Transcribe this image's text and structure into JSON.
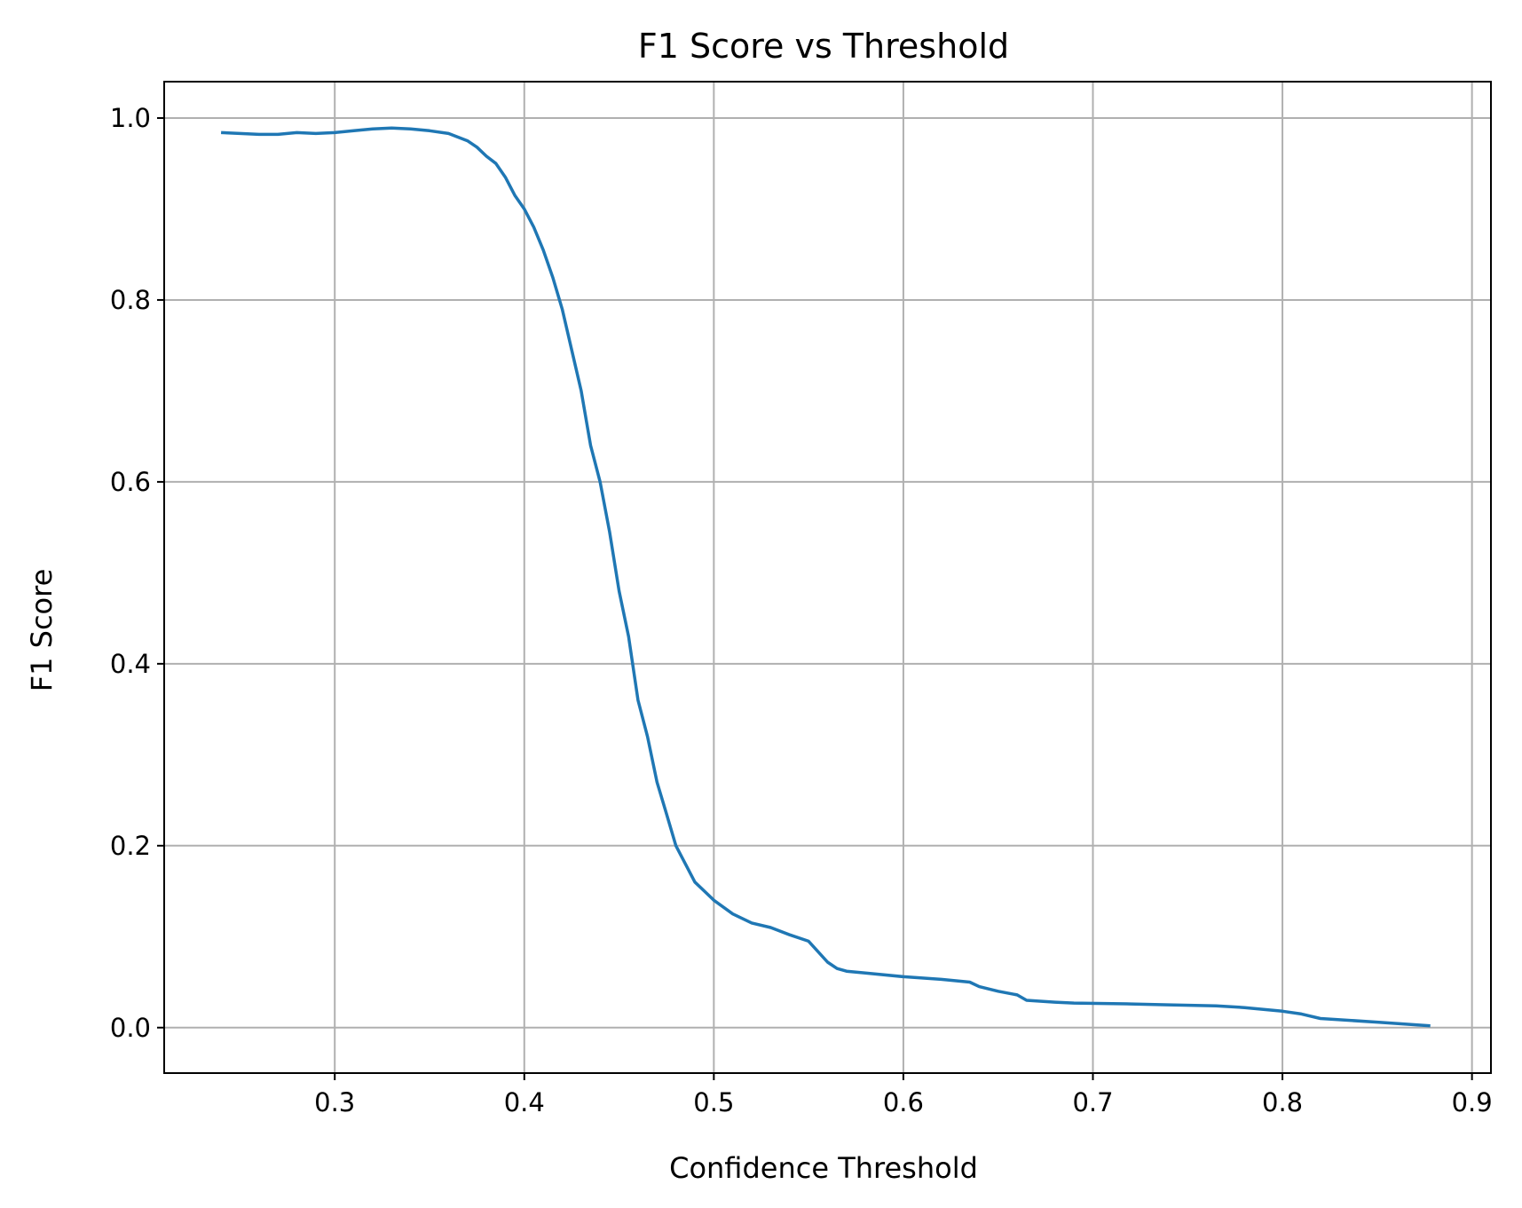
{
  "chart_data": {
    "type": "line",
    "title": "F1 Score vs Threshold",
    "xlabel": "Confidence Threshold",
    "ylabel": "F1 Score",
    "xlim": [
      0.21,
      0.91
    ],
    "ylim": [
      -0.05,
      1.04
    ],
    "xticks": [
      0.3,
      0.4,
      0.5,
      0.6,
      0.7,
      0.8,
      0.9
    ],
    "xtick_labels": [
      "0.3",
      "0.4",
      "0.5",
      "0.6",
      "0.7",
      "0.8",
      "0.9"
    ],
    "yticks": [
      0.0,
      0.2,
      0.4,
      0.6,
      0.8,
      1.0
    ],
    "ytick_labels": [
      "0.0",
      "0.2",
      "0.4",
      "0.6",
      "0.8",
      "1.0"
    ],
    "grid": true,
    "line_color": "#1f77b4",
    "series": [
      {
        "x": [
          0.24,
          0.25,
          0.26,
          0.27,
          0.28,
          0.29,
          0.3,
          0.31,
          0.32,
          0.33,
          0.34,
          0.35,
          0.36,
          0.37,
          0.375,
          0.38,
          0.385,
          0.39,
          0.395,
          0.4,
          0.405,
          0.41,
          0.415,
          0.42,
          0.425,
          0.43,
          0.435,
          0.44,
          0.445,
          0.45,
          0.455,
          0.46,
          0.465,
          0.47,
          0.475,
          0.48,
          0.485,
          0.49,
          0.495,
          0.5,
          0.51,
          0.52,
          0.53,
          0.54,
          0.55,
          0.56,
          0.565,
          0.57,
          0.58,
          0.6,
          0.62,
          0.635,
          0.64,
          0.65,
          0.66,
          0.665,
          0.68,
          0.69,
          0.72,
          0.74,
          0.765,
          0.78,
          0.79,
          0.8,
          0.81,
          0.82,
          0.85,
          0.878
        ],
        "y": [
          0.984,
          0.983,
          0.982,
          0.982,
          0.984,
          0.983,
          0.984,
          0.986,
          0.988,
          0.989,
          0.988,
          0.986,
          0.983,
          0.975,
          0.968,
          0.958,
          0.95,
          0.935,
          0.915,
          0.9,
          0.88,
          0.855,
          0.825,
          0.79,
          0.745,
          0.7,
          0.64,
          0.6,
          0.545,
          0.48,
          0.43,
          0.36,
          0.32,
          0.27,
          0.235,
          0.2,
          0.18,
          0.16,
          0.15,
          0.14,
          0.125,
          0.115,
          0.11,
          0.102,
          0.095,
          0.072,
          0.065,
          0.062,
          0.06,
          0.056,
          0.053,
          0.05,
          0.045,
          0.04,
          0.036,
          0.03,
          0.028,
          0.027,
          0.026,
          0.025,
          0.024,
          0.022,
          0.02,
          0.018,
          0.015,
          0.01,
          0.006,
          0.002
        ]
      }
    ]
  }
}
